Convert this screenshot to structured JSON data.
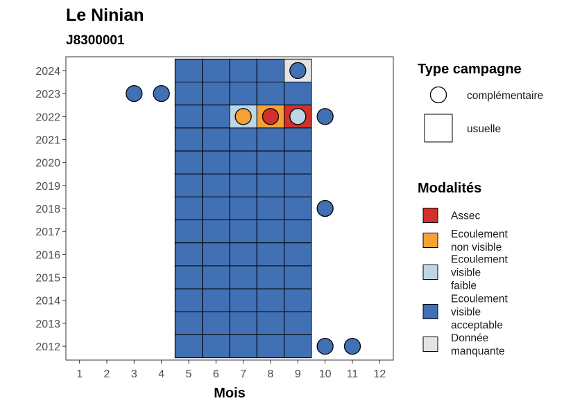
{
  "chart_data": {
    "type": "heatmap",
    "title": "Le Ninian",
    "subtitle": "J8300001",
    "xlabel": "Mois",
    "ylabel": "",
    "x_ticks": [
      1,
      2,
      3,
      4,
      5,
      6,
      7,
      8,
      9,
      10,
      11,
      12
    ],
    "y_ticks": [
      2012,
      2013,
      2014,
      2015,
      2016,
      2017,
      2018,
      2019,
      2020,
      2021,
      2022,
      2023,
      2024
    ],
    "xlim": [
      0.5,
      12.5
    ],
    "ylim": [
      2011.4,
      2024.6
    ],
    "grid": false,
    "legend_placement": "right",
    "colors": {
      "Assec": "#d1302b",
      "Ecoulement non visible": "#f6a135",
      "Ecoulement visible faible": "#bcd6e6",
      "Ecoulement visible acceptable": "#4171b4",
      "Donnée manquante": "#e4e4e4"
    },
    "legend_type": {
      "title": "Type campagne",
      "items": [
        {
          "label": "complémentaire",
          "shape": "circle"
        },
        {
          "label": "usuelle",
          "shape": "square"
        }
      ]
    },
    "legend_modalites": {
      "title": "Modalités",
      "items": [
        {
          "key": "Assec",
          "lines": [
            "Assec"
          ]
        },
        {
          "key": "Ecoulement non visible",
          "lines": [
            "Ecoulement",
            "non visible"
          ]
        },
        {
          "key": "Ecoulement visible faible",
          "lines": [
            "Ecoulement",
            "visible",
            "faible"
          ]
        },
        {
          "key": "Ecoulement visible acceptable",
          "lines": [
            "Ecoulement",
            "visible",
            "acceptable"
          ]
        },
        {
          "key": "Donnée manquante",
          "lines": [
            "Donnée",
            "manquante"
          ]
        }
      ]
    },
    "usuelle": [
      {
        "year": 2024,
        "months": [
          5,
          6,
          7,
          8
        ],
        "modalite": "Ecoulement visible acceptable"
      },
      {
        "year": 2024,
        "months": [
          9
        ],
        "modalite": "Donnée manquante"
      },
      {
        "year": 2023,
        "months": [
          5,
          6,
          7,
          8,
          9
        ],
        "modalite": "Ecoulement visible acceptable"
      },
      {
        "year": 2022,
        "months": [
          5,
          6
        ],
        "modalite": "Ecoulement visible acceptable"
      },
      {
        "year": 2022,
        "months": [
          7
        ],
        "modalite": "Ecoulement visible faible"
      },
      {
        "year": 2022,
        "months": [
          8
        ],
        "modalite": "Ecoulement non visible"
      },
      {
        "year": 2022,
        "months": [
          9
        ],
        "modalite": "Assec"
      },
      {
        "year": 2021,
        "months": [
          5,
          6,
          7,
          8,
          9
        ],
        "modalite": "Ecoulement visible acceptable"
      },
      {
        "year": 2020,
        "months": [
          5,
          6,
          7,
          8,
          9
        ],
        "modalite": "Ecoulement visible acceptable"
      },
      {
        "year": 2019,
        "months": [
          5,
          6,
          7,
          8,
          9
        ],
        "modalite": "Ecoulement visible acceptable"
      },
      {
        "year": 2018,
        "months": [
          5,
          6,
          7,
          8,
          9
        ],
        "modalite": "Ecoulement visible acceptable"
      },
      {
        "year": 2017,
        "months": [
          5,
          6,
          7,
          8,
          9
        ],
        "modalite": "Ecoulement visible acceptable"
      },
      {
        "year": 2016,
        "months": [
          5,
          6,
          7,
          8,
          9
        ],
        "modalite": "Ecoulement visible acceptable"
      },
      {
        "year": 2015,
        "months": [
          5,
          6,
          7,
          8,
          9
        ],
        "modalite": "Ecoulement visible acceptable"
      },
      {
        "year": 2014,
        "months": [
          5,
          6,
          7,
          8,
          9
        ],
        "modalite": "Ecoulement visible acceptable"
      },
      {
        "year": 2013,
        "months": [
          5,
          6,
          7,
          8,
          9
        ],
        "modalite": "Ecoulement visible acceptable"
      },
      {
        "year": 2012,
        "months": [
          5,
          6,
          7,
          8,
          9
        ],
        "modalite": "Ecoulement visible acceptable"
      }
    ],
    "complementaire": [
      {
        "year": 2024,
        "month": 9,
        "modalite": "Ecoulement visible acceptable"
      },
      {
        "year": 2023,
        "month": 3,
        "modalite": "Ecoulement visible acceptable"
      },
      {
        "year": 2023,
        "month": 4,
        "modalite": "Ecoulement visible acceptable"
      },
      {
        "year": 2022,
        "month": 7,
        "modalite": "Ecoulement non visible"
      },
      {
        "year": 2022,
        "month": 8,
        "modalite": "Assec"
      },
      {
        "year": 2022,
        "month": 9,
        "modalite": "Ecoulement visible faible"
      },
      {
        "year": 2022,
        "month": 10,
        "modalite": "Ecoulement visible acceptable"
      },
      {
        "year": 2018,
        "month": 10,
        "modalite": "Ecoulement visible acceptable"
      },
      {
        "year": 2012,
        "month": 10,
        "modalite": "Ecoulement visible acceptable"
      },
      {
        "year": 2012,
        "month": 11,
        "modalite": "Ecoulement visible acceptable"
      }
    ]
  }
}
